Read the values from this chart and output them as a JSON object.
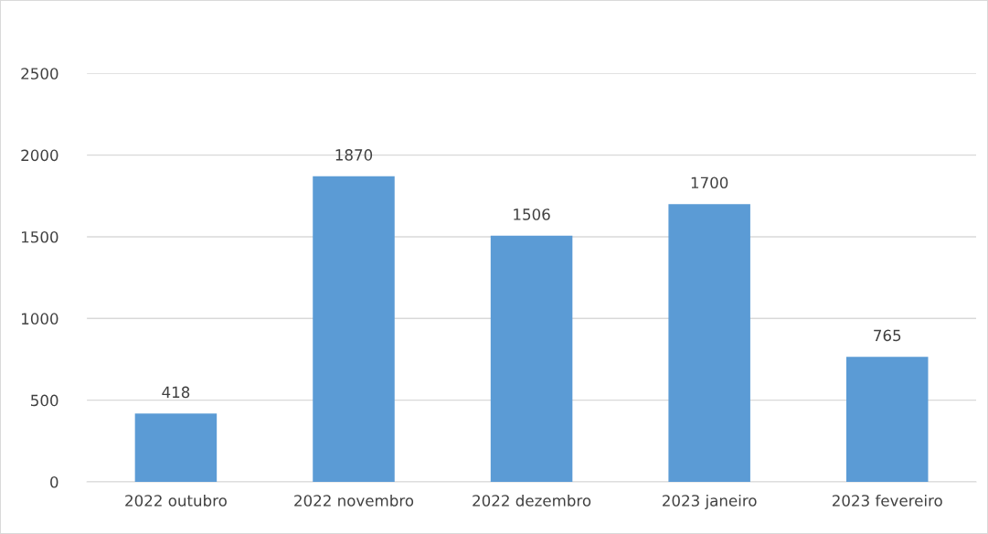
{
  "chart_data": {
    "type": "bar",
    "categories": [
      "2022 outubro",
      "2022 novembro",
      "2022 dezembro",
      "2023 janeiro",
      "2023 fevereiro"
    ],
    "values": [
      418,
      1870,
      1506,
      1700,
      765
    ],
    "color": "#5b9bd5",
    "ylim": [
      0,
      2500
    ],
    "yticks": [
      0,
      500,
      1000,
      1500,
      2000,
      2500
    ],
    "grid": "y",
    "data_labels": true,
    "legend": false
  }
}
